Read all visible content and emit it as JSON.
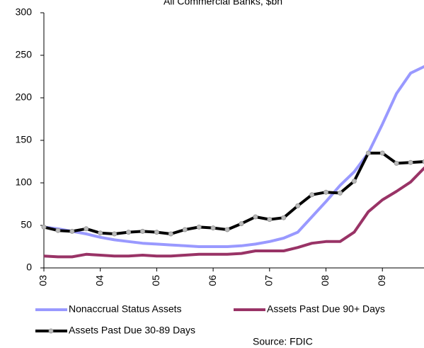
{
  "chart_data": {
    "type": "line",
    "title": "All Commercial Banks, $bn",
    "source": "Source:  FDIC",
    "x": [
      2003,
      2003.25,
      2003.5,
      2003.75,
      2004,
      2004.25,
      2004.5,
      2004.75,
      2005,
      2005.25,
      2005.5,
      2005.75,
      2006,
      2006.25,
      2006.5,
      2006.75,
      2007,
      2007.25,
      2007.5,
      2007.75,
      2008,
      2008.25,
      2008.5,
      2008.75,
      2009,
      2009.25,
      2009.5,
      2009.75
    ],
    "xlim": [
      2003,
      2009.75
    ],
    "xticks": [
      {
        "value": 2003,
        "label": "03"
      },
      {
        "value": 2004,
        "label": "04"
      },
      {
        "value": 2005,
        "label": "05"
      },
      {
        "value": 2006,
        "label": "06"
      },
      {
        "value": 2007,
        "label": "07"
      },
      {
        "value": 2008,
        "label": "08"
      },
      {
        "value": 2009,
        "label": "09"
      }
    ],
    "ylim": [
      0,
      300
    ],
    "yticks": [
      0,
      50,
      100,
      150,
      200,
      250,
      300
    ],
    "grid": false,
    "series": [
      {
        "name": "Nonaccrual Status Assets",
        "color": "#9999ff",
        "marker": false,
        "values": [
          48,
          46,
          43,
          40,
          36,
          33,
          31,
          29,
          28,
          27,
          26,
          25,
          25,
          25,
          26,
          28,
          31,
          35,
          42,
          60,
          78,
          97,
          113,
          135,
          169,
          205,
          229,
          237
        ]
      },
      {
        "name": "Assets Past Due 90+ Days",
        "color": "#993366",
        "marker": false,
        "values": [
          14,
          13,
          13,
          16,
          15,
          14,
          14,
          15,
          14,
          14,
          15,
          16,
          16,
          16,
          17,
          20,
          20,
          20,
          24,
          29,
          31,
          31,
          42,
          66,
          80,
          90,
          101,
          118
        ]
      },
      {
        "name": "Assets Past Due 30-89 Days",
        "color": "#000000",
        "marker": true,
        "values": [
          48,
          44,
          43,
          46,
          41,
          40,
          42,
          43,
          42,
          40,
          45,
          48,
          47,
          45,
          52,
          60,
          57,
          59,
          73,
          86,
          89,
          88,
          102,
          135,
          135,
          123,
          124,
          125
        ]
      }
    ]
  }
}
